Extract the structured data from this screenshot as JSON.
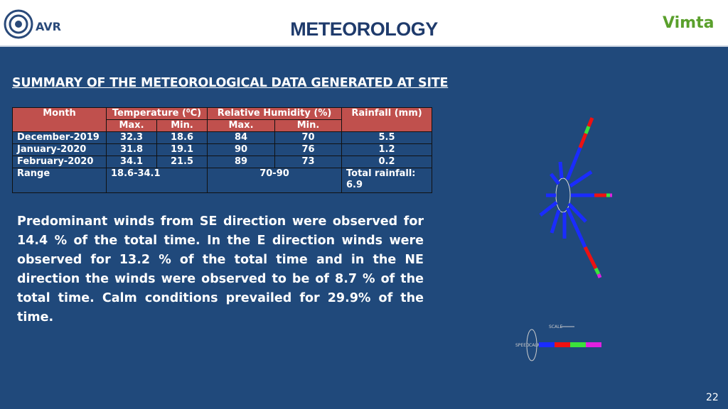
{
  "header": {
    "title": "METEOROLOGY",
    "left_logo": "AVR",
    "right_logo": "Vimta"
  },
  "subtitle": "SUMMARY OF THE METEOROLOGICAL DATA GENERATED AT SITE",
  "table": {
    "header": [
      "Month",
      "Temperature (⁰C)",
      "Relative Humidity (%)",
      "Rainfall (mm)"
    ],
    "subheader": [
      "Max.",
      "Min.",
      "Max.",
      "Min."
    ],
    "rows": [
      [
        "December-2019",
        "32.3",
        "18.6",
        "84",
        "70",
        "5.5"
      ],
      [
        "January-2020",
        "31.8",
        "19.1",
        "90",
        "76",
        "1.2"
      ],
      [
        "February-2020",
        "34.1",
        "21.5",
        "89",
        "73",
        "0.2"
      ]
    ],
    "range_row": [
      "Range",
      "18.6-34.1",
      "70-90",
      "Total rainfall: 6.9"
    ]
  },
  "paragraph": "Predominant winds from SE direction were observed for 14.4 % of the total time.  In the E direction winds were observed for 13.2 % of the total time and in the NE direction the winds were observed to be of 8.7 % of the total time. Calm conditions prevailed for 29.9% of the time.",
  "windrose_legend": {
    "scale": "SCALE",
    "speed": "SPEED",
    "calm": "CALM"
  },
  "page_number": "22"
}
